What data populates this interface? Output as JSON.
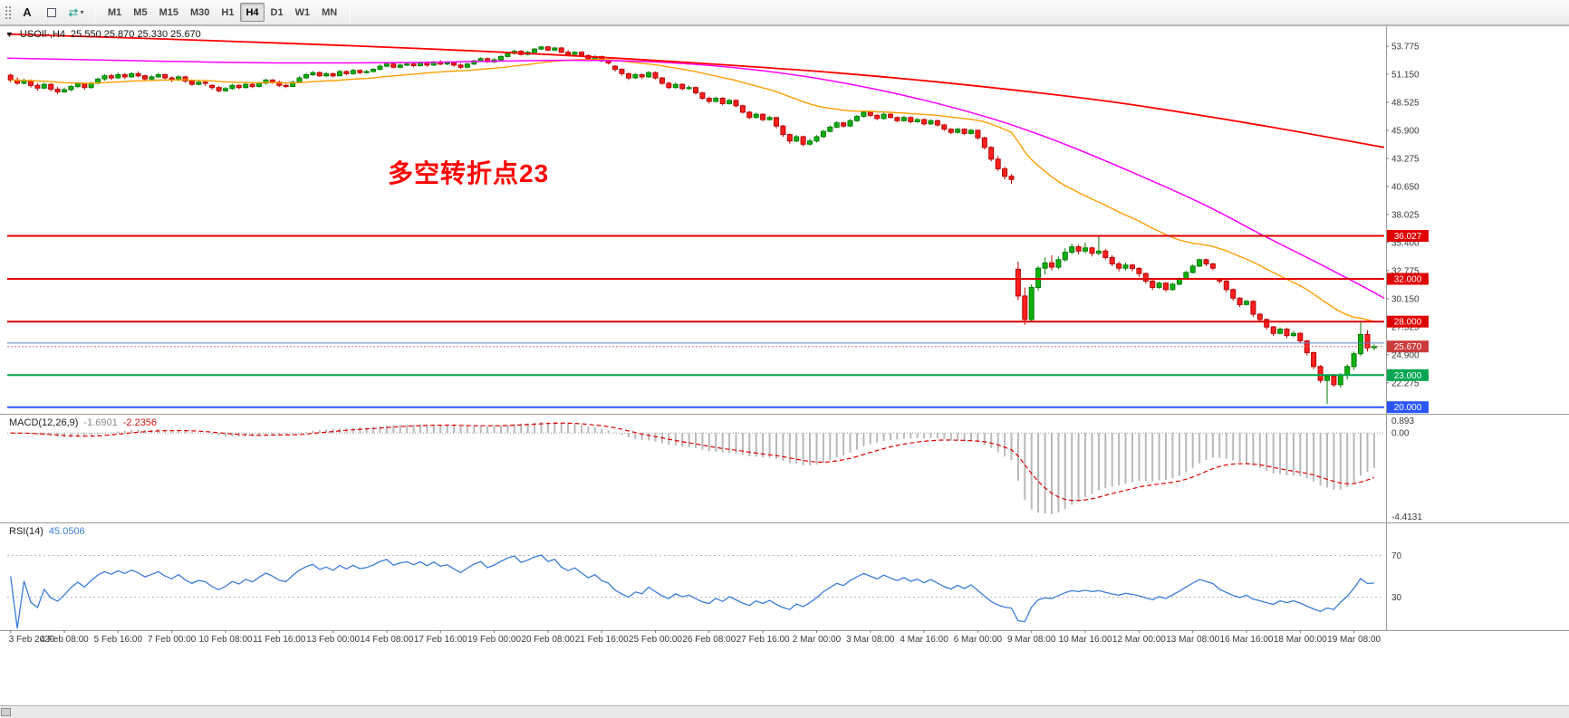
{
  "toolbar": {
    "annotate_label": "A",
    "timeframes": [
      "M1",
      "M5",
      "M15",
      "M30",
      "H1",
      "H4",
      "D1",
      "W1",
      "MN"
    ],
    "active_timeframe": "H4"
  },
  "chart_data": {
    "type": "candlestick",
    "title": "USOIl· H4 candlestick chart with MACD and RSI",
    "title_label": "USOIl·,H4",
    "ohlc_label": "25.550 25.870 25.330 25.670",
    "symbol": "USOIl·",
    "timeframe": "H4",
    "annotation": {
      "text": "多空转折点23",
      "color": "#ff0000"
    },
    "colors": {
      "up_fill": "#0fb10f",
      "up_stroke": "#067d06",
      "down_fill": "#ff2020",
      "down_stroke": "#b80000",
      "background": "#ffffff"
    },
    "price_axis": {
      "min": 19.55,
      "max": 55.55,
      "tick_labels": [
        "53.775",
        "51.150",
        "48.525",
        "45.900",
        "43.275",
        "40.650",
        "38.025",
        "35.400",
        "32.775",
        "30.150",
        "27.525",
        "24.900",
        "22.275"
      ]
    },
    "time_labels": [
      "3 Feb 2020",
      "4 Feb 08:00",
      "5 Feb 16:00",
      "7 Feb 00:00",
      "10 Feb 08:00",
      "11 Feb 16:00",
      "13 Feb 00:00",
      "14 Feb 08:00",
      "17 Feb 16:00",
      "19 Feb 00:00",
      "20 Feb 08:00",
      "21 Feb 16:00",
      "25 Feb 00:00",
      "26 Feb 08:00",
      "27 Feb 16:00",
      "2 Mar 00:00",
      "3 Mar 08:00",
      "4 Mar 16:00",
      "6 Mar 00:00",
      "9 Mar 08:00",
      "10 Mar 16:00",
      "12 Mar 00:00",
      "13 Mar 08:00",
      "16 Mar 16:00",
      "18 Mar 00:00",
      "19 Mar 08:00"
    ],
    "candles": [
      [
        51.05,
        51.2,
        50.4,
        50.6
      ],
      [
        50.6,
        50.85,
        50.15,
        50.3
      ],
      [
        50.3,
        50.75,
        50.2,
        50.55
      ],
      [
        50.55,
        50.65,
        49.9,
        50.1
      ],
      [
        50.1,
        50.3,
        49.6,
        49.85
      ],
      [
        49.85,
        50.35,
        49.75,
        50.2
      ],
      [
        50.2,
        50.3,
        49.55,
        49.75
      ],
      [
        49.75,
        49.95,
        49.3,
        49.5
      ],
      [
        49.5,
        49.9,
        49.4,
        49.7
      ],
      [
        49.7,
        50.15,
        49.55,
        50.0
      ],
      [
        50.0,
        50.4,
        49.85,
        50.25
      ],
      [
        50.25,
        50.35,
        49.7,
        49.9
      ],
      [
        49.9,
        50.45,
        49.8,
        50.3
      ],
      [
        50.3,
        50.85,
        50.2,
        50.7
      ],
      [
        50.7,
        51.15,
        50.55,
        51.0
      ],
      [
        51.0,
        51.2,
        50.6,
        50.8
      ],
      [
        50.8,
        51.3,
        50.7,
        51.1
      ],
      [
        51.1,
        51.25,
        50.7,
        50.9
      ],
      [
        50.9,
        51.35,
        50.8,
        51.2
      ],
      [
        51.2,
        51.4,
        50.85,
        51.0
      ],
      [
        51.0,
        51.1,
        50.5,
        50.7
      ],
      [
        50.7,
        51.05,
        50.55,
        50.9
      ],
      [
        50.9,
        51.3,
        50.8,
        51.1
      ],
      [
        51.1,
        51.2,
        50.65,
        50.8
      ],
      [
        50.8,
        50.95,
        50.4,
        50.6
      ],
      [
        50.6,
        51.05,
        50.5,
        50.9
      ],
      [
        50.9,
        51.0,
        50.35,
        50.5
      ],
      [
        50.5,
        50.65,
        50.05,
        50.2
      ],
      [
        50.2,
        50.55,
        50.1,
        50.4
      ],
      [
        50.4,
        50.5,
        50.05,
        50.3
      ],
      [
        50.1,
        50.2,
        49.7,
        49.9
      ],
      [
        49.9,
        50.05,
        49.45,
        49.6
      ],
      [
        49.6,
        49.95,
        49.5,
        49.8
      ],
      [
        49.8,
        50.25,
        49.7,
        50.1
      ],
      [
        50.1,
        50.2,
        49.75,
        49.9
      ],
      [
        49.9,
        50.35,
        49.8,
        50.2
      ],
      [
        50.2,
        50.3,
        49.85,
        50.0
      ],
      [
        50.0,
        50.45,
        49.9,
        50.3
      ],
      [
        50.3,
        50.75,
        50.2,
        50.6
      ],
      [
        50.6,
        50.7,
        50.25,
        50.4
      ],
      [
        50.4,
        50.55,
        49.95,
        50.1
      ],
      [
        50.1,
        50.25,
        49.85,
        50.0
      ],
      [
        50.0,
        50.55,
        49.95,
        50.4
      ],
      [
        50.4,
        50.95,
        50.3,
        50.8
      ],
      [
        50.8,
        51.25,
        50.7,
        51.1
      ],
      [
        51.1,
        51.45,
        51.0,
        51.3
      ],
      [
        51.3,
        51.4,
        50.9,
        51.0
      ],
      [
        51.0,
        51.35,
        50.9,
        51.2
      ],
      [
        51.2,
        51.3,
        50.85,
        51.0
      ],
      [
        51.0,
        51.55,
        50.95,
        51.4
      ],
      [
        51.4,
        51.5,
        51.05,
        51.2
      ],
      [
        51.2,
        51.65,
        51.1,
        51.5
      ],
      [
        51.5,
        51.6,
        51.15,
        51.3
      ],
      [
        51.3,
        51.55,
        51.2,
        51.4
      ],
      [
        51.4,
        51.75,
        51.3,
        51.6
      ],
      [
        51.6,
        52.05,
        51.5,
        51.9
      ],
      [
        51.9,
        52.25,
        51.8,
        52.1
      ],
      [
        52.1,
        52.2,
        51.7,
        51.8
      ],
      [
        51.8,
        52.15,
        51.7,
        52.0
      ],
      [
        52.0,
        52.25,
        51.9,
        52.1
      ],
      [
        52.1,
        52.2,
        51.8,
        51.95
      ],
      [
        51.95,
        52.35,
        51.85,
        52.2
      ],
      [
        52.2,
        52.3,
        51.85,
        52.0
      ],
      [
        52.0,
        52.4,
        51.9,
        52.3
      ],
      [
        52.3,
        52.45,
        52.0,
        52.1
      ],
      [
        52.1,
        52.35,
        52.0,
        52.2
      ],
      [
        52.2,
        52.3,
        51.85,
        52.0
      ],
      [
        52.0,
        52.15,
        51.65,
        51.8
      ],
      [
        51.8,
        52.2,
        51.7,
        52.1
      ],
      [
        52.1,
        52.5,
        52.0,
        52.4
      ],
      [
        52.4,
        52.75,
        52.3,
        52.6
      ],
      [
        52.6,
        52.7,
        52.2,
        52.3
      ],
      [
        52.3,
        52.65,
        52.2,
        52.5
      ],
      [
        52.5,
        52.95,
        52.4,
        52.8
      ],
      [
        52.8,
        53.2,
        52.7,
        53.1
      ],
      [
        53.1,
        53.45,
        53.0,
        53.3
      ],
      [
        53.3,
        53.4,
        52.9,
        53.0
      ],
      [
        53.0,
        53.35,
        52.9,
        53.2
      ],
      [
        53.2,
        53.6,
        53.1,
        53.5
      ],
      [
        53.5,
        53.78,
        53.4,
        53.7
      ],
      [
        53.7,
        53.77,
        53.3,
        53.4
      ],
      [
        53.4,
        53.7,
        53.3,
        53.6
      ],
      [
        53.6,
        53.7,
        53.1,
        53.2
      ],
      [
        53.2,
        53.4,
        52.9,
        53.0
      ],
      [
        53.0,
        53.3,
        52.9,
        53.2
      ],
      [
        53.2,
        53.3,
        52.75,
        52.9
      ],
      [
        52.9,
        53.0,
        52.45,
        52.6
      ],
      [
        52.6,
        52.95,
        52.5,
        52.8
      ],
      [
        52.8,
        52.9,
        52.3,
        52.4
      ],
      [
        52.4,
        52.55,
        52.05,
        52.2
      ],
      [
        51.9,
        52.0,
        51.4,
        51.6
      ],
      [
        51.6,
        51.7,
        51.0,
        51.2
      ],
      [
        51.2,
        51.3,
        50.6,
        50.8
      ],
      [
        50.8,
        51.25,
        50.7,
        51.1
      ],
      [
        51.1,
        51.2,
        50.7,
        50.9
      ],
      [
        50.9,
        51.45,
        50.8,
        51.3
      ],
      [
        51.3,
        51.4,
        50.65,
        50.8
      ],
      [
        50.8,
        50.9,
        50.15,
        50.3
      ],
      [
        50.3,
        50.45,
        49.75,
        49.9
      ],
      [
        49.9,
        50.35,
        49.8,
        50.2
      ],
      [
        50.2,
        50.3,
        49.65,
        49.8
      ],
      [
        49.8,
        50.1,
        49.7,
        49.9
      ],
      [
        49.9,
        50.0,
        49.25,
        49.4
      ],
      [
        49.4,
        49.5,
        48.75,
        48.9
      ],
      [
        48.9,
        49.05,
        48.4,
        48.6
      ],
      [
        48.6,
        49.05,
        48.5,
        48.9
      ],
      [
        48.9,
        49.0,
        48.25,
        48.4
      ],
      [
        48.4,
        48.85,
        48.3,
        48.7
      ],
      [
        48.7,
        48.8,
        48.05,
        48.2
      ],
      [
        48.2,
        48.3,
        47.45,
        47.6
      ],
      [
        47.6,
        47.7,
        46.95,
        47.1
      ],
      [
        47.1,
        47.55,
        47.0,
        47.4
      ],
      [
        47.4,
        47.5,
        46.75,
        46.9
      ],
      [
        46.9,
        47.25,
        46.8,
        47.1
      ],
      [
        47.1,
        47.15,
        46.1,
        46.3
      ],
      [
        46.3,
        46.4,
        45.3,
        45.5
      ],
      [
        45.5,
        45.6,
        44.65,
        44.9
      ],
      [
        44.9,
        45.45,
        44.8,
        45.3
      ],
      [
        45.3,
        45.4,
        44.4,
        44.6
      ],
      [
        44.6,
        45.1,
        44.45,
        44.9
      ],
      [
        44.9,
        45.45,
        44.75,
        45.3
      ],
      [
        45.3,
        45.95,
        45.2,
        45.8
      ],
      [
        45.8,
        46.35,
        45.7,
        46.2
      ],
      [
        46.2,
        46.75,
        46.1,
        46.6
      ],
      [
        46.6,
        46.7,
        46.15,
        46.3
      ],
      [
        46.3,
        46.95,
        46.2,
        46.8
      ],
      [
        46.8,
        47.35,
        46.7,
        47.2
      ],
      [
        47.2,
        47.75,
        47.1,
        47.6
      ],
      [
        47.6,
        47.7,
        47.15,
        47.3
      ],
      [
        47.3,
        47.4,
        46.85,
        47.0
      ],
      [
        47.0,
        47.55,
        46.9,
        47.4
      ],
      [
        47.4,
        47.5,
        47.0,
        47.1
      ],
      [
        47.1,
        47.2,
        46.65,
        46.8
      ],
      [
        46.8,
        47.25,
        46.7,
        47.1
      ],
      [
        47.1,
        47.2,
        46.55,
        46.7
      ],
      [
        46.7,
        47.05,
        46.6,
        46.9
      ],
      [
        46.9,
        47.0,
        46.35,
        46.5
      ],
      [
        46.5,
        46.95,
        46.4,
        46.8
      ],
      [
        46.8,
        46.9,
        46.25,
        46.4
      ],
      [
        46.4,
        46.5,
        45.85,
        46.0
      ],
      [
        46.0,
        46.1,
        45.55,
        45.7
      ],
      [
        45.7,
        46.15,
        45.6,
        46.0
      ],
      [
        46.0,
        46.1,
        45.45,
        45.6
      ],
      [
        45.6,
        46.05,
        45.5,
        45.9
      ],
      [
        45.9,
        45.95,
        45.0,
        45.2
      ],
      [
        45.2,
        45.3,
        44.1,
        44.3
      ],
      [
        44.3,
        44.4,
        43.0,
        43.2
      ],
      [
        43.2,
        43.5,
        42.1,
        42.3
      ],
      [
        42.3,
        42.5,
        41.3,
        41.6
      ],
      [
        41.6,
        41.8,
        40.9,
        41.3
      ],
      [
        32.9,
        33.6,
        30.0,
        30.4
      ],
      [
        30.4,
        31.2,
        27.7,
        28.2
      ],
      [
        28.2,
        31.5,
        28.0,
        31.2
      ],
      [
        31.2,
        33.2,
        30.9,
        33.0
      ],
      [
        33.0,
        34.0,
        32.4,
        33.5
      ],
      [
        33.5,
        34.2,
        32.8,
        33.1
      ],
      [
        33.1,
        34.1,
        32.9,
        33.8
      ],
      [
        33.8,
        34.9,
        33.6,
        34.5
      ],
      [
        34.5,
        35.3,
        34.3,
        35.0
      ],
      [
        35.0,
        35.2,
        34.3,
        34.6
      ],
      [
        34.6,
        35.4,
        34.4,
        34.9
      ],
      [
        34.9,
        35.0,
        34.1,
        34.4
      ],
      [
        34.4,
        36.03,
        34.2,
        34.6
      ],
      [
        34.6,
        34.8,
        33.8,
        34.0
      ],
      [
        34.0,
        34.2,
        33.2,
        33.4
      ],
      [
        33.4,
        33.6,
        32.7,
        33.0
      ],
      [
        33.0,
        33.5,
        32.8,
        33.3
      ],
      [
        33.3,
        33.4,
        32.7,
        32.98
      ],
      [
        32.98,
        33.1,
        32.2,
        32.5
      ],
      [
        32.5,
        32.6,
        31.55,
        31.8
      ],
      [
        31.8,
        31.9,
        30.95,
        31.2
      ],
      [
        31.2,
        31.75,
        31.05,
        31.6
      ],
      [
        31.6,
        31.7,
        30.8,
        31.0
      ],
      [
        31.0,
        31.65,
        30.9,
        31.5
      ],
      [
        31.5,
        32.15,
        31.4,
        32.0
      ],
      [
        32.0,
        32.75,
        31.9,
        32.6
      ],
      [
        32.6,
        33.35,
        32.5,
        33.2
      ],
      [
        33.2,
        33.9,
        33.1,
        33.8
      ],
      [
        33.8,
        33.9,
        33.2,
        33.4
      ],
      [
        33.4,
        33.5,
        32.8,
        33.0
      ],
      [
        32.0,
        32.1,
        31.55,
        31.8
      ],
      [
        31.8,
        31.9,
        30.75,
        31.0
      ],
      [
        31.0,
        31.1,
        29.95,
        30.2
      ],
      [
        30.2,
        30.3,
        29.35,
        29.6
      ],
      [
        29.6,
        30.05,
        29.5,
        29.9
      ],
      [
        29.9,
        30.0,
        28.45,
        28.7
      ],
      [
        28.7,
        28.8,
        27.95,
        28.2
      ],
      [
        28.2,
        28.3,
        27.25,
        27.5
      ],
      [
        27.5,
        27.6,
        26.65,
        26.9
      ],
      [
        26.9,
        27.45,
        26.8,
        27.3
      ],
      [
        27.3,
        27.4,
        26.45,
        26.7
      ],
      [
        26.7,
        27.15,
        26.55,
        26.9
      ],
      [
        26.9,
        27.0,
        25.95,
        26.2
      ],
      [
        26.2,
        26.3,
        24.85,
        25.1
      ],
      [
        25.1,
        25.2,
        23.55,
        23.8
      ],
      [
        23.8,
        23.95,
        22.25,
        22.5
      ],
      [
        22.5,
        23.0,
        20.3,
        22.9
      ],
      [
        22.9,
        23.1,
        21.9,
        22.1
      ],
      [
        22.1,
        23.2,
        21.8,
        23.0
      ],
      [
        23.0,
        24.0,
        22.6,
        23.8
      ],
      [
        23.8,
        25.2,
        23.5,
        25.0
      ],
      [
        25.0,
        27.9,
        24.8,
        26.8
      ],
      [
        26.8,
        27.2,
        25.2,
        25.55
      ],
      [
        25.55,
        25.87,
        25.33,
        25.67
      ]
    ],
    "overlays": {
      "ma_fast": {
        "color": "#ff9d00",
        "period": 34
      },
      "ma_mid": {
        "color": "#ff00ff",
        "points": [
          [
            0,
            52.65
          ],
          [
            0.1,
            52.4
          ],
          [
            0.2,
            52.2
          ],
          [
            0.3,
            52.25
          ],
          [
            0.4,
            52.45
          ],
          [
            0.47,
            52.3
          ],
          [
            0.54,
            51.6
          ],
          [
            0.6,
            50.5
          ],
          [
            0.66,
            48.9
          ],
          [
            0.72,
            46.8
          ],
          [
            0.77,
            44.5
          ],
          [
            0.82,
            41.8
          ],
          [
            0.87,
            38.9
          ],
          [
            0.91,
            36.2
          ],
          [
            0.95,
            33.6
          ],
          [
            0.98,
            31.6
          ],
          [
            1,
            30.2
          ]
        ]
      },
      "ma_slow": {
        "color": "#ff0000",
        "points": [
          [
            0,
            54.9
          ],
          [
            0.1,
            54.5
          ],
          [
            0.2,
            54.05
          ],
          [
            0.3,
            53.55
          ],
          [
            0.4,
            52.95
          ],
          [
            0.5,
            52.2
          ],
          [
            0.6,
            51.3
          ],
          [
            0.7,
            50.1
          ],
          [
            0.8,
            48.6
          ],
          [
            0.9,
            46.6
          ],
          [
            1,
            44.3
          ]
        ]
      },
      "horizontal_lines": [
        {
          "price": 36.027,
          "label": "36.027",
          "color": "#e00000",
          "width": 2
        },
        {
          "price": 32.0,
          "label": "32.000",
          "color": "#e00000",
          "width": 2
        },
        {
          "price": 28.0,
          "label": "28.000",
          "color": "#e00000",
          "width": 2
        },
        {
          "price": 26.0,
          "label": "",
          "color": "#5b7fc4",
          "width": 1
        },
        {
          "price": 23.0,
          "label": "23.000",
          "color": "#00a651",
          "width": 2
        },
        {
          "price": 20.0,
          "label": "20.000",
          "color": "#2b55ff",
          "width": 2
        }
      ],
      "current_price": {
        "value": 25.67,
        "label": "25.670",
        "box_color": "#cc3b3b"
      }
    },
    "indicators": {
      "macd": {
        "name": "MACD(12,26,9)",
        "value_main": "-1.6901",
        "value_signal": "-2.2356",
        "fast": 12,
        "slow": 26,
        "signal": 9,
        "axis_labels": [
          "0.893",
          "0.00",
          "-4.4131"
        ],
        "hist_color": "#b9b9b9",
        "signal_color": "#e00000"
      },
      "rsi": {
        "name": "RSI(14)",
        "value": "45.0506",
        "period": 14,
        "levels": [
          70,
          30
        ],
        "color": "#3b7dd8"
      }
    }
  }
}
